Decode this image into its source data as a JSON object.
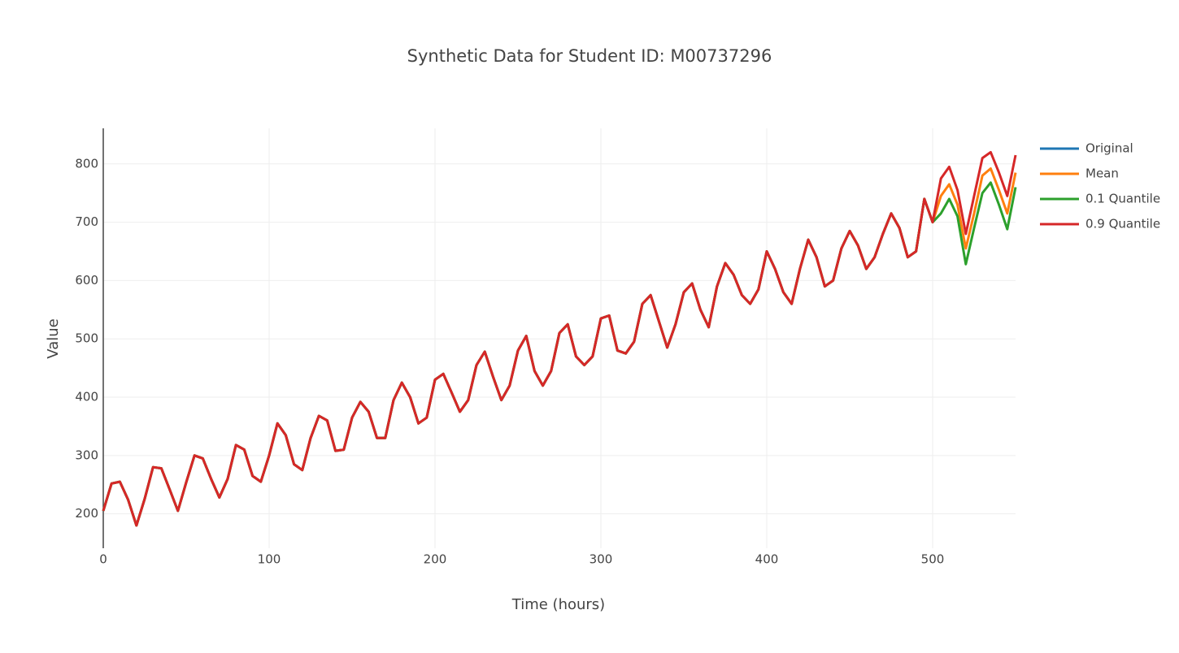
{
  "chart_data": {
    "type": "line",
    "title": "Synthetic Data for Student ID: M00737296",
    "x_label": "Time (hours)",
    "y_label": "Value",
    "x": [
      0,
      5,
      10,
      15,
      20,
      25,
      30,
      35,
      40,
      45,
      50,
      55,
      60,
      65,
      70,
      75,
      80,
      85,
      90,
      95,
      100,
      105,
      110,
      115,
      120,
      125,
      130,
      135,
      140,
      145,
      150,
      155,
      160,
      165,
      170,
      175,
      180,
      185,
      190,
      195,
      200,
      205,
      210,
      215,
      220,
      225,
      230,
      235,
      240,
      245,
      250,
      255,
      260,
      265,
      270,
      275,
      280,
      285,
      290,
      295,
      300,
      305,
      310,
      315,
      320,
      325,
      330,
      335,
      340,
      345,
      350,
      355,
      360,
      365,
      370,
      375,
      380,
      385,
      390,
      395,
      400,
      405,
      410,
      415,
      420,
      425,
      430,
      435,
      440,
      445,
      450,
      455,
      460,
      465,
      470,
      475,
      480,
      485,
      490,
      495,
      500,
      505,
      510,
      515,
      520,
      525,
      530,
      535,
      540,
      545,
      550
    ],
    "series": [
      {
        "name": "Original",
        "color": "#1f77b4",
        "values": [
          205,
          252,
          255,
          224,
          180,
          226,
          280,
          278,
          242,
          205,
          254,
          300,
          295,
          260,
          228,
          260,
          318,
          310,
          265,
          255,
          300,
          355,
          335,
          285,
          275,
          330,
          368,
          360,
          308,
          310,
          365,
          392,
          375,
          330,
          330,
          395,
          425,
          400,
          355,
          365,
          430,
          440,
          408,
          375,
          395,
          455,
          478,
          435,
          395,
          420,
          480,
          505,
          445,
          420,
          445,
          510,
          525,
          470,
          455,
          470,
          535,
          540,
          480,
          475,
          495,
          560,
          575,
          530,
          485,
          525,
          580,
          595,
          550,
          520,
          590,
          630,
          610,
          575,
          560,
          585,
          650,
          620,
          580,
          560,
          620,
          670,
          640,
          590,
          600,
          655,
          685,
          660,
          620,
          640,
          680,
          715,
          690,
          640,
          650,
          740,
          700,
          null,
          null,
          null,
          null,
          null,
          null,
          null,
          null,
          null,
          null
        ]
      },
      {
        "name": "Mean",
        "color": "#ff7f0e",
        "values": [
          205,
          252,
          255,
          224,
          180,
          226,
          280,
          278,
          242,
          205,
          254,
          300,
          295,
          260,
          228,
          260,
          318,
          310,
          265,
          255,
          300,
          355,
          335,
          285,
          275,
          330,
          368,
          360,
          308,
          310,
          365,
          392,
          375,
          330,
          330,
          395,
          425,
          400,
          355,
          365,
          430,
          440,
          408,
          375,
          395,
          455,
          478,
          435,
          395,
          420,
          480,
          505,
          445,
          420,
          445,
          510,
          525,
          470,
          455,
          470,
          535,
          540,
          480,
          475,
          495,
          560,
          575,
          530,
          485,
          525,
          580,
          595,
          550,
          520,
          590,
          630,
          610,
          575,
          560,
          585,
          650,
          620,
          580,
          560,
          620,
          670,
          640,
          590,
          600,
          655,
          685,
          660,
          620,
          640,
          680,
          715,
          690,
          640,
          650,
          740,
          700,
          745,
          765,
          730,
          655,
          715,
          780,
          792,
          755,
          715,
          785
        ]
      },
      {
        "name": "0.1 Quantile",
        "color": "#2ca02c",
        "values": [
          205,
          252,
          255,
          224,
          180,
          226,
          280,
          278,
          242,
          205,
          254,
          300,
          295,
          260,
          228,
          260,
          318,
          310,
          265,
          255,
          300,
          355,
          335,
          285,
          275,
          330,
          368,
          360,
          308,
          310,
          365,
          392,
          375,
          330,
          330,
          395,
          425,
          400,
          355,
          365,
          430,
          440,
          408,
          375,
          395,
          455,
          478,
          435,
          395,
          420,
          480,
          505,
          445,
          420,
          445,
          510,
          525,
          470,
          455,
          470,
          535,
          540,
          480,
          475,
          495,
          560,
          575,
          530,
          485,
          525,
          580,
          595,
          550,
          520,
          590,
          630,
          610,
          575,
          560,
          585,
          650,
          620,
          580,
          560,
          620,
          670,
          640,
          590,
          600,
          655,
          685,
          660,
          620,
          640,
          680,
          715,
          690,
          640,
          650,
          740,
          700,
          715,
          740,
          710,
          628,
          690,
          750,
          768,
          730,
          688,
          760
        ]
      },
      {
        "name": "0.9 Quantile",
        "color": "#d62728",
        "values": [
          205,
          252,
          255,
          224,
          180,
          226,
          280,
          278,
          242,
          205,
          254,
          300,
          295,
          260,
          228,
          260,
          318,
          310,
          265,
          255,
          300,
          355,
          335,
          285,
          275,
          330,
          368,
          360,
          308,
          310,
          365,
          392,
          375,
          330,
          330,
          395,
          425,
          400,
          355,
          365,
          430,
          440,
          408,
          375,
          395,
          455,
          478,
          435,
          395,
          420,
          480,
          505,
          445,
          420,
          445,
          510,
          525,
          470,
          455,
          470,
          535,
          540,
          480,
          475,
          495,
          560,
          575,
          530,
          485,
          525,
          580,
          595,
          550,
          520,
          590,
          630,
          610,
          575,
          560,
          585,
          650,
          620,
          580,
          560,
          620,
          670,
          640,
          590,
          600,
          655,
          685,
          660,
          620,
          640,
          680,
          715,
          690,
          640,
          650,
          740,
          700,
          775,
          795,
          755,
          680,
          745,
          810,
          820,
          785,
          745,
          815
        ]
      }
    ],
    "xlim": [
      0,
      550
    ],
    "xticks": [
      0,
      100,
      200,
      300,
      400,
      500
    ],
    "ylim": [
      141,
      861
    ],
    "yticks": [
      200,
      300,
      400,
      500,
      600,
      700,
      800
    ],
    "grid": true,
    "legend": "top-right"
  }
}
